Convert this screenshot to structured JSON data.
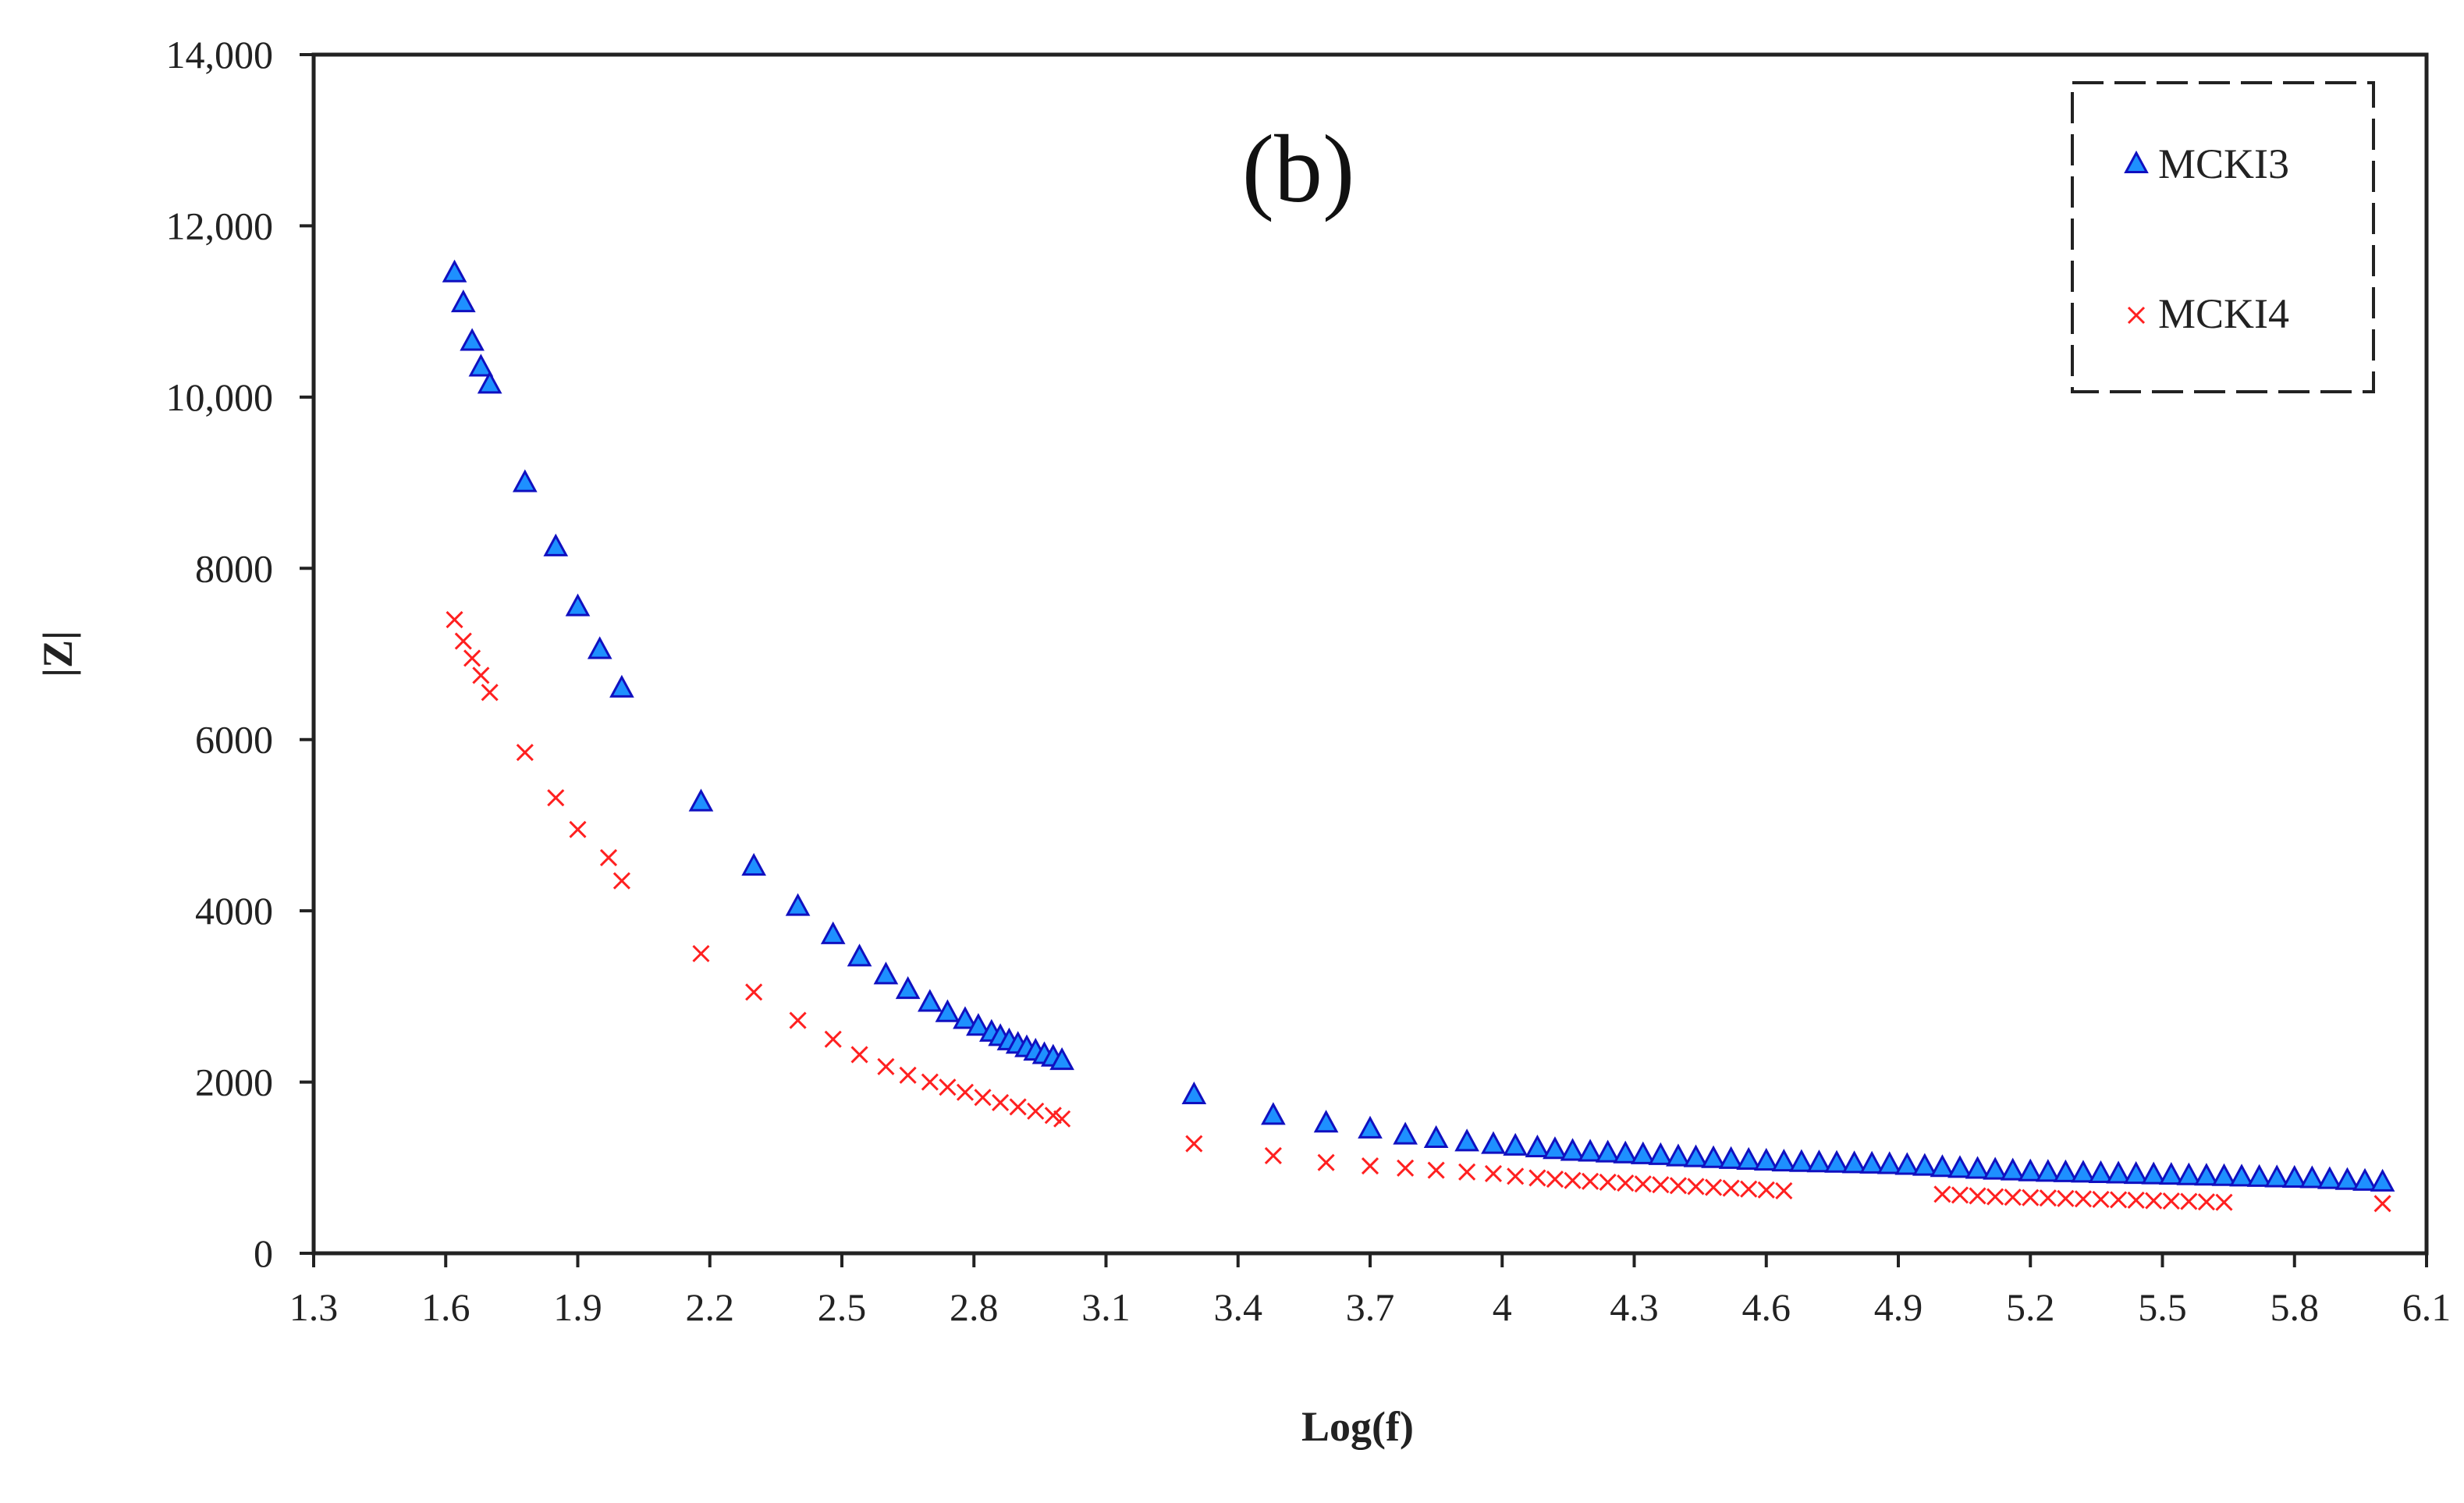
{
  "chart_data": {
    "type": "scatter",
    "title": "",
    "panel_label": "(b)",
    "xlabel": "Log(f)",
    "ylabel": "|Z|",
    "xlim": [
      1.3,
      6.1
    ],
    "ylim": [
      0,
      14000
    ],
    "x_ticks": [
      1.3,
      1.6,
      1.9,
      2.2,
      2.5,
      2.8,
      3.1,
      3.4,
      3.7,
      4,
      4.3,
      4.6,
      4.9,
      5.2,
      5.5,
      5.8,
      6.1
    ],
    "x_tick_labels": [
      "1.3",
      "1.6",
      "1.9",
      "2.2",
      "2.5",
      "2.8",
      "3.1",
      "3.4",
      "3.7",
      "4",
      "4.3",
      "4.6",
      "4.9",
      "5.2",
      "5.5",
      "5.8",
      "6.1"
    ],
    "y_ticks": [
      0,
      2000,
      4000,
      6000,
      8000,
      10000,
      12000,
      14000
    ],
    "y_tick_labels": [
      "0",
      "2000",
      "4000",
      "6000",
      "8000",
      "10,000",
      "12,000",
      "14,000"
    ],
    "grid": false,
    "legend_position": "top-right",
    "series": [
      {
        "name": "MCKI3",
        "marker": "triangle",
        "color": "#1e90ff",
        "edge_color": "#1010c0",
        "x": [
          1.62,
          1.64,
          1.66,
          1.68,
          1.7,
          1.78,
          1.85,
          1.9,
          1.95,
          2.0,
          2.18,
          2.3,
          2.4,
          2.48,
          2.54,
          2.6,
          2.65,
          2.7,
          2.74,
          2.78,
          2.81,
          2.84,
          2.86,
          2.88,
          2.9,
          2.92,
          2.94,
          2.96,
          2.98,
          3.0,
          3.3,
          3.48,
          3.6,
          3.7,
          3.78,
          3.85,
          3.92,
          3.98,
          4.03,
          4.08,
          4.12,
          4.16,
          4.2,
          4.24,
          4.28,
          4.32,
          4.36,
          4.4,
          4.44,
          4.48,
          4.52,
          4.56,
          4.6,
          4.64,
          4.68,
          4.72,
          4.76,
          4.8,
          4.84,
          4.88,
          4.92,
          4.96,
          5.0,
          5.04,
          5.08,
          5.12,
          5.16,
          5.2,
          5.24,
          5.28,
          5.32,
          5.36,
          5.4,
          5.44,
          5.48,
          5.52,
          5.56,
          5.6,
          5.64,
          5.68,
          5.72,
          5.76,
          5.8,
          5.84,
          5.88,
          5.92,
          5.96,
          6.0
        ],
        "y": [
          11450,
          11100,
          10650,
          10350,
          10150,
          9000,
          8250,
          7550,
          7050,
          6600,
          5270,
          4520,
          4050,
          3720,
          3460,
          3250,
          3080,
          2930,
          2810,
          2730,
          2650,
          2580,
          2530,
          2480,
          2440,
          2400,
          2360,
          2320,
          2290,
          2250,
          1850,
          1610,
          1520,
          1450,
          1380,
          1340,
          1300,
          1270,
          1250,
          1230,
          1210,
          1190,
          1180,
          1170,
          1160,
          1150,
          1140,
          1125,
          1115,
          1105,
          1095,
          1085,
          1075,
          1065,
          1060,
          1055,
          1050,
          1045,
          1040,
          1035,
          1025,
          1015,
          1000,
          990,
          980,
          970,
          960,
          950,
          945,
          940,
          935,
          930,
          925,
          920,
          915,
          910,
          905,
          900,
          895,
          890,
          885,
          880,
          875,
          870,
          860,
          850,
          840,
          830
        ]
      },
      {
        "name": "MCKI4",
        "marker": "x",
        "color": "#ff2020",
        "x": [
          1.62,
          1.64,
          1.66,
          1.68,
          1.7,
          1.78,
          1.85,
          1.9,
          1.97,
          2.0,
          2.18,
          2.3,
          2.4,
          2.48,
          2.54,
          2.6,
          2.65,
          2.7,
          2.74,
          2.78,
          2.82,
          2.86,
          2.9,
          2.94,
          2.98,
          3.0,
          3.3,
          3.48,
          3.6,
          3.7,
          3.78,
          3.85,
          3.92,
          3.98,
          4.03,
          4.08,
          4.12,
          4.16,
          4.2,
          4.24,
          4.28,
          4.32,
          4.36,
          4.4,
          4.44,
          4.48,
          4.52,
          4.56,
          4.6,
          4.64,
          5.0,
          5.04,
          5.08,
          5.12,
          5.16,
          5.2,
          5.24,
          5.28,
          5.32,
          5.36,
          5.4,
          5.44,
          5.48,
          5.52,
          5.56,
          5.6,
          5.64,
          6.0
        ],
        "y": [
          7400,
          7150,
          6950,
          6750,
          6550,
          5850,
          5320,
          4950,
          4620,
          4350,
          3500,
          3050,
          2720,
          2500,
          2320,
          2180,
          2080,
          2000,
          1940,
          1880,
          1820,
          1760,
          1710,
          1660,
          1610,
          1570,
          1280,
          1140,
          1060,
          1020,
          995,
          970,
          950,
          930,
          900,
          880,
          865,
          850,
          840,
          830,
          820,
          810,
          800,
          790,
          780,
          770,
          760,
          750,
          740,
          730,
          690,
          680,
          670,
          660,
          655,
          650,
          645,
          640,
          635,
          630,
          625,
          620,
          615,
          610,
          605,
          600,
          595,
          580
        ]
      }
    ]
  }
}
